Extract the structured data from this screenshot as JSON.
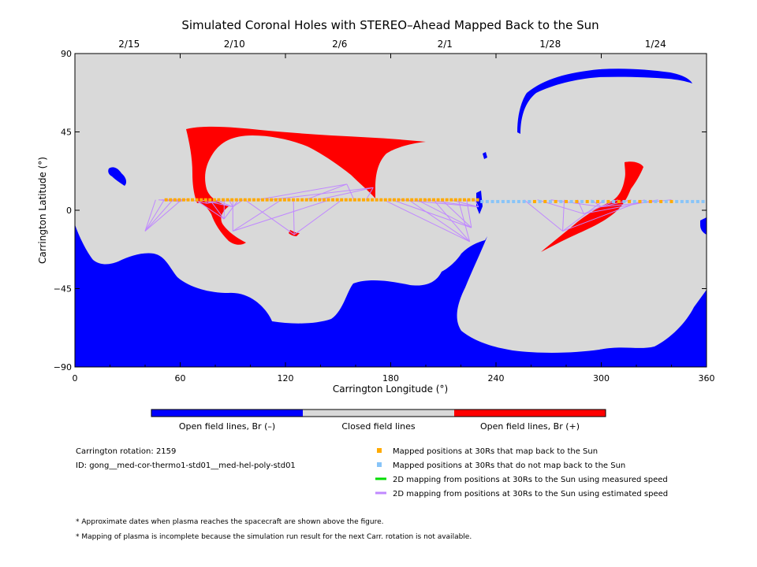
{
  "chart_data": {
    "type": "map",
    "title": "Simulated Coronal Holes with STEREO–Ahead Mapped Back to the Sun",
    "xlabel": "Carrington Longitude (°)",
    "ylabel": "Carrington Latitude (°)",
    "xlim": [
      0,
      360
    ],
    "ylim": [
      -90,
      90
    ],
    "x_ticks": [
      0,
      60,
      120,
      180,
      240,
      300,
      360
    ],
    "y_ticks": [
      90,
      45,
      0,
      -45,
      -90
    ],
    "top_axis": {
      "ticks": [
        {
          "label": "2/15",
          "lon": 30
        },
        {
          "label": "2/10",
          "lon": 90
        },
        {
          "label": "2/6",
          "lon": 150
        },
        {
          "label": "2/1",
          "lon": 210
        },
        {
          "label": "1/28",
          "lon": 270
        },
        {
          "label": "1/24",
          "lon": 330
        }
      ]
    },
    "colors": {
      "open_negative": "#0000ff",
      "closed": "#d9d9d9",
      "open_positive": "#ff0000",
      "mapped": "#ffaa00",
      "not_mapped": "#88c4f8",
      "measured_speed": "#00dd00",
      "estimated_speed": "#c088ff"
    },
    "mapped_points": {
      "lat": 6,
      "lon_start": 52,
      "lon_end": 230,
      "step": 2.5
    },
    "unmapped_points": {
      "lat": 5,
      "lon_start": 232,
      "lon_end": 358,
      "step": 3,
      "mapped_override_range": [
        258,
        342
      ]
    },
    "fieldline_groups": [
      {
        "targets": [
          [
            40,
            -12
          ],
          [
            60,
            5
          ],
          [
            62,
            6
          ]
        ],
        "from": [
          46,
          64
        ]
      },
      {
        "targets": [
          [
            75,
            4
          ],
          [
            85,
            -5
          ],
          [
            90,
            2
          ]
        ],
        "from": [
          66,
          96
        ]
      },
      {
        "targets": [
          [
            90,
            -12
          ],
          [
            125,
            -14
          ],
          [
            155,
            15
          ],
          [
            170,
            13
          ]
        ],
        "from": [
          90,
          166
        ]
      },
      {
        "targets": [
          [
            225,
            -18
          ],
          [
            226,
            -10
          ],
          [
            230,
            2
          ]
        ],
        "from": [
          176,
          228
        ]
      },
      {
        "targets": [
          [
            278,
            -12
          ],
          [
            290,
            -2
          ],
          [
            300,
            2
          ]
        ],
        "from": [
          256,
          340
        ]
      }
    ]
  },
  "legend_bar": {
    "labels": [
      "Open field lines, Br (–)",
      "Closed field lines",
      "Open field lines, Br (+)"
    ]
  },
  "info": {
    "rotation": "Carrington rotation: 2159",
    "id": "ID: gong__med-cor-thermo1-std01__med-hel-poly-std01"
  },
  "legend": {
    "mapped": "Mapped positions at 30Rs that map back to the Sun",
    "not_mapped": "Mapped positions at 30Rs that do not map back to the Sun",
    "measured": "2D mapping from positions at 30Rs to the Sun using measured speed",
    "estimated": "2D mapping from positions at 30Rs to the Sun using estimated speed"
  },
  "notes": {
    "note1": "* Approximate dates when plasma reaches the spacecraft are shown above the figure.",
    "note2": "* Mapping of plasma is incomplete because the simulation run result for the next Carr. rotation is not available."
  }
}
